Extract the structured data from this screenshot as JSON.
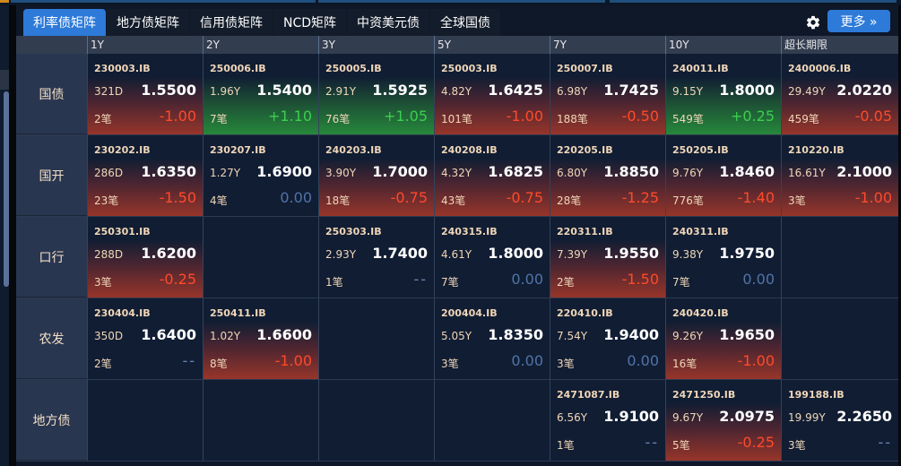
{
  "tabs": [
    {
      "label": "利率债矩阵",
      "active": true
    },
    {
      "label": "地方债矩阵",
      "active": false
    },
    {
      "label": "信用债矩阵",
      "active": false
    },
    {
      "label": "NCD矩阵",
      "active": false
    },
    {
      "label": "中资美元债",
      "active": false
    },
    {
      "label": "全球国债",
      "active": false
    }
  ],
  "toolbar": {
    "settings_icon": "gear-icon",
    "more_label": "更多 »"
  },
  "columns": [
    "1Y",
    "2Y",
    "3Y",
    "5Y",
    "7Y",
    "10Y",
    "超长期限"
  ],
  "colors": {
    "accent": "#2d7ad9",
    "down": "#ff4a2a",
    "up": "#3ccf4e",
    "flat": "#4f74a8"
  },
  "rows": [
    {
      "label": "国债",
      "cells": [
        {
          "code": "230003.IB",
          "term": "321D",
          "yield": "1.5500",
          "count": "2笔",
          "change": "-1.00",
          "trend": "down"
        },
        {
          "code": "250006.IB",
          "term": "1.96Y",
          "yield": "1.5400",
          "count": "7笔",
          "change": "+1.10",
          "trend": "up"
        },
        {
          "code": "250005.IB",
          "term": "2.91Y",
          "yield": "1.5925",
          "count": "76笔",
          "change": "+1.05",
          "trend": "up"
        },
        {
          "code": "250003.IB",
          "term": "4.82Y",
          "yield": "1.6425",
          "count": "101笔",
          "change": "-1.00",
          "trend": "down"
        },
        {
          "code": "250007.IB",
          "term": "6.98Y",
          "yield": "1.7425",
          "count": "188笔",
          "change": "-0.50",
          "trend": "down"
        },
        {
          "code": "240011.IB",
          "term": "9.15Y",
          "yield": "1.8000",
          "count": "549笔",
          "change": "+0.25",
          "trend": "up"
        },
        {
          "code": "2400006.IB",
          "term": "29.49Y",
          "yield": "2.0220",
          "count": "459笔",
          "change": "-0.05",
          "trend": "down"
        }
      ]
    },
    {
      "label": "国开",
      "cells": [
        {
          "code": "230202.IB",
          "term": "286D",
          "yield": "1.6350",
          "count": "23笔",
          "change": "-1.50",
          "trend": "down"
        },
        {
          "code": "230207.IB",
          "term": "1.27Y",
          "yield": "1.6900",
          "count": "4笔",
          "change": "0.00",
          "trend": "flat"
        },
        {
          "code": "240203.IB",
          "term": "3.90Y",
          "yield": "1.7000",
          "count": "18笔",
          "change": "-0.75",
          "trend": "down"
        },
        {
          "code": "240208.IB",
          "term": "4.32Y",
          "yield": "1.6825",
          "count": "43笔",
          "change": "-0.75",
          "trend": "down"
        },
        {
          "code": "220205.IB",
          "term": "6.80Y",
          "yield": "1.8850",
          "count": "28笔",
          "change": "-1.25",
          "trend": "down"
        },
        {
          "code": "250205.IB",
          "term": "9.76Y",
          "yield": "1.8460",
          "count": "776笔",
          "change": "-1.40",
          "trend": "down"
        },
        {
          "code": "210220.IB",
          "term": "16.61Y",
          "yield": "2.1000",
          "count": "3笔",
          "change": "-1.00",
          "trend": "down"
        }
      ]
    },
    {
      "label": "口行",
      "cells": [
        {
          "code": "250301.IB",
          "term": "288D",
          "yield": "1.6200",
          "count": "3笔",
          "change": "-0.25",
          "trend": "down"
        },
        null,
        {
          "code": "250303.IB",
          "term": "2.93Y",
          "yield": "1.7400",
          "count": "1笔",
          "change": "--",
          "trend": "none"
        },
        {
          "code": "240315.IB",
          "term": "4.61Y",
          "yield": "1.8000",
          "count": "7笔",
          "change": "0.00",
          "trend": "flat"
        },
        {
          "code": "220311.IB",
          "term": "7.39Y",
          "yield": "1.9550",
          "count": "2笔",
          "change": "-1.50",
          "trend": "down"
        },
        {
          "code": "240311.IB",
          "term": "9.38Y",
          "yield": "1.9750",
          "count": "7笔",
          "change": "0.00",
          "trend": "flat"
        },
        null
      ]
    },
    {
      "label": "农发",
      "cells": [
        {
          "code": "230404.IB",
          "term": "350D",
          "yield": "1.6400",
          "count": "2笔",
          "change": "--",
          "trend": "none"
        },
        {
          "code": "250411.IB",
          "term": "1.02Y",
          "yield": "1.6600",
          "count": "8笔",
          "change": "-1.00",
          "trend": "down"
        },
        null,
        {
          "code": "200404.IB",
          "term": "5.05Y",
          "yield": "1.8350",
          "count": "3笔",
          "change": "0.00",
          "trend": "flat"
        },
        {
          "code": "220410.IB",
          "term": "7.54Y",
          "yield": "1.9400",
          "count": "3笔",
          "change": "0.00",
          "trend": "flat"
        },
        {
          "code": "240420.IB",
          "term": "9.26Y",
          "yield": "1.9650",
          "count": "16笔",
          "change": "-1.00",
          "trend": "down"
        },
        null
      ]
    },
    {
      "label": "地方债",
      "cells": [
        null,
        null,
        null,
        null,
        {
          "code": "2471087.IB",
          "term": "6.56Y",
          "yield": "1.9100",
          "count": "1笔",
          "change": "--",
          "trend": "none"
        },
        {
          "code": "2471250.IB",
          "term": "9.67Y",
          "yield": "2.0975",
          "count": "5笔",
          "change": "-0.25",
          "trend": "down"
        },
        {
          "code": "199188.IB",
          "term": "19.99Y",
          "yield": "2.2650",
          "count": "3笔",
          "change": "--",
          "trend": "none"
        }
      ]
    }
  ]
}
